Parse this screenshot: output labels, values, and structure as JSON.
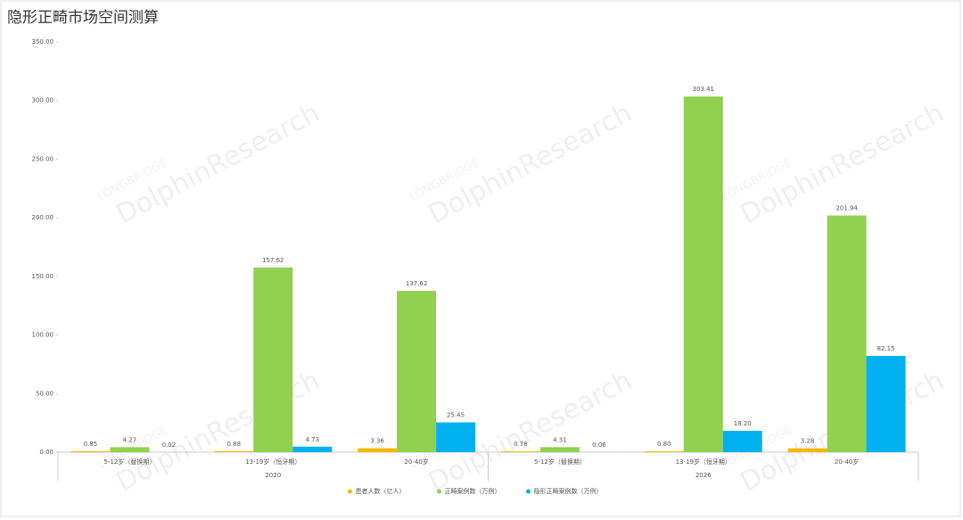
{
  "chart_data": {
    "type": "bar",
    "title": "隐形正畸市场空间测算",
    "watermark": [
      "LONGBRIDGE",
      "DolphinResearch"
    ],
    "categories": [
      "5-12岁（替换期）",
      "13-19岁（恒牙期）",
      "20-40岁",
      "5-12岁（替换期）",
      "13-19岁（恒牙期）",
      "20-40岁"
    ],
    "category_groups": [
      "2020",
      "2020",
      "2020",
      "2026",
      "2026",
      "2026"
    ],
    "series": [
      {
        "name": "患者人数（亿人）",
        "color": "#f5b800",
        "values": [
          0.85,
          0.88,
          3.36,
          0.78,
          0.8,
          3.28
        ],
        "value_labels": [
          "0.85",
          "0.88",
          "3.36",
          "0.78",
          "0.80",
          "3.28"
        ]
      },
      {
        "name": "正畸案例数（万例）",
        "color": "#92d050",
        "values": [
          4.27,
          157.62,
          137.62,
          4.31,
          303.41,
          201.94
        ],
        "value_labels": [
          "4.27",
          "157.62",
          "137.62",
          "4.31",
          "303.41",
          "201.94"
        ]
      },
      {
        "name": "隐形正畸案例数（万例）",
        "color": "#00b0f0",
        "values": [
          0.02,
          4.73,
          25.45,
          0.06,
          18.2,
          82.15
        ],
        "value_labels": [
          "0.02",
          "4.73",
          "25.45",
          "0.06",
          "18.20",
          "82.15"
        ]
      }
    ],
    "ylim": [
      0,
      350
    ],
    "yticks": [
      {
        "value": 0,
        "label": "0.00"
      },
      {
        "value": 50,
        "label": "50.00"
      },
      {
        "value": 100,
        "label": "100.00"
      },
      {
        "value": 150,
        "label": "150.00"
      },
      {
        "value": 200,
        "label": "200.00"
      },
      {
        "value": 250,
        "label": "250.00"
      },
      {
        "value": 300,
        "label": "300.00"
      },
      {
        "value": 350,
        "label": "350.00"
      }
    ],
    "grid": false,
    "legend": "bottom"
  }
}
